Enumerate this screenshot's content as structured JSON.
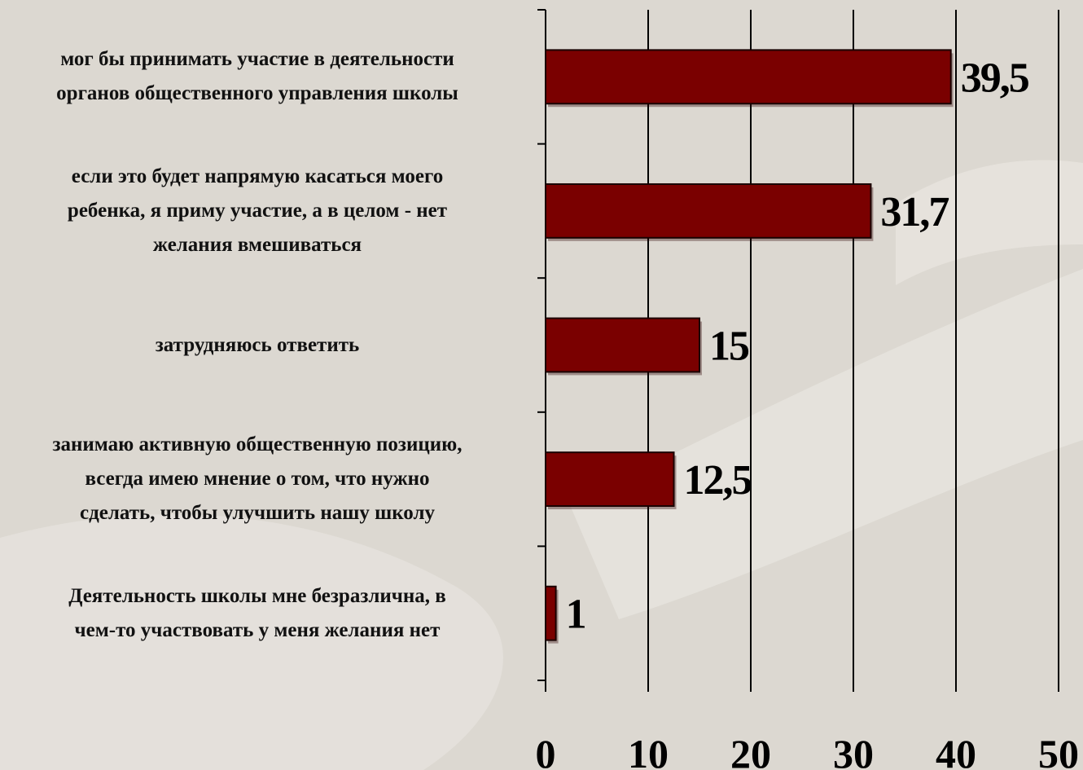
{
  "chart_data": {
    "type": "bar",
    "orientation": "horizontal",
    "categories": [
      [
        "мог бы принимать участие в деятельности",
        "органов общественного управления школы"
      ],
      [
        "если это будет напрямую касаться моего",
        "ребенка, я приму участие, а в целом - нет",
        "желания вмешиваться"
      ],
      [
        "затрудняюсь ответить"
      ],
      [
        "занимаю активную общественную позицию,",
        "всегда имею мнение о том, что нужно",
        "сделать, чтобы улучшить нашу школу"
      ],
      [
        "Деятельность школы мне безразлична, в",
        "чем-то участвовать у меня желания нет"
      ]
    ],
    "values": [
      39.5,
      31.7,
      15,
      12.5,
      1
    ],
    "data_labels": [
      "39,5",
      "31,7",
      "15",
      "12,5",
      "1"
    ],
    "xlim": [
      0,
      50
    ],
    "xticks": [
      0,
      10,
      20,
      30,
      40,
      50
    ],
    "grid": true,
    "legend": "none",
    "bar_color": "#7a0000"
  }
}
